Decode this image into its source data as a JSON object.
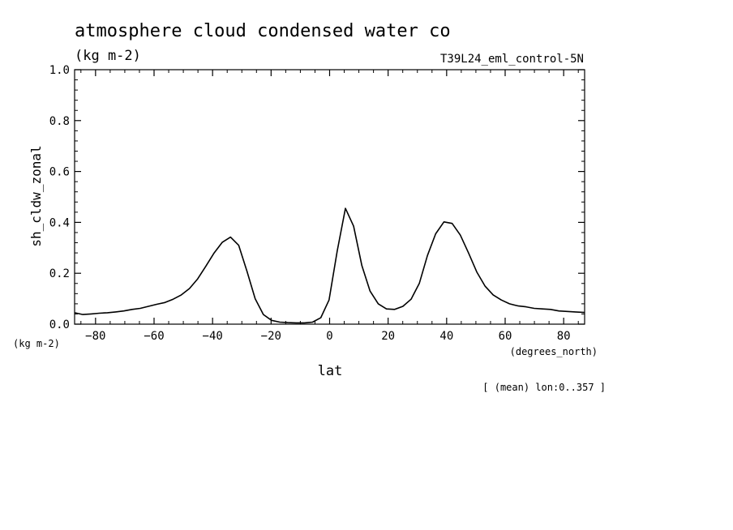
{
  "chart_data": {
    "type": "line",
    "title": "atmosphere cloud condensed water co",
    "subtitle": "(kg m-2)",
    "run_label": "T39L24_eml_control-5N",
    "ylabel": "sh_cldw_zonal",
    "yunits": "(kg m-2)",
    "xlabel": "lat",
    "xunits": "(degrees_north)",
    "footnote": "[ (mean) lon:0..357 ]",
    "xlim": [
      -87.16,
      87.16
    ],
    "ylim": [
      0.0,
      1.0
    ],
    "xticks": [
      "-80",
      "-60",
      "-40",
      "-20",
      "0",
      "20",
      "40",
      "60",
      "80"
    ],
    "yticks": [
      "0.0",
      "0.2",
      "0.4",
      "0.6",
      "0.8",
      "1.0"
    ],
    "colors": {
      "line": "#000000",
      "background": "#ffffff"
    },
    "series": [
      {
        "x": [
          -87.16,
          -84.35,
          -81.55,
          -78.74,
          -75.94,
          -73.13,
          -70.33,
          -67.52,
          -64.72,
          -61.91,
          -59.11,
          -56.3,
          -53.5,
          -50.69,
          -47.89,
          -45.08,
          -42.28,
          -39.47,
          -36.67,
          -33.86,
          -31.06,
          -28.25,
          -25.45,
          -22.64,
          -19.84,
          -17.03,
          -14.23,
          -11.42,
          -8.62,
          -5.81,
          -3.01,
          -0.2,
          2.6,
          5.41,
          8.21,
          11.02,
          13.82,
          16.63,
          19.43,
          22.24,
          25.04,
          27.85,
          30.65,
          33.46,
          36.26,
          39.07,
          41.87,
          44.68,
          47.48,
          50.29,
          53.09,
          55.9,
          58.7,
          61.51,
          64.31,
          67.12,
          69.92,
          72.73,
          75.53,
          78.34,
          81.14,
          83.95,
          87.16
        ],
        "values": [
          0.045,
          0.038,
          0.04,
          0.043,
          0.045,
          0.048,
          0.052,
          0.058,
          0.062,
          0.07,
          0.078,
          0.085,
          0.098,
          0.115,
          0.14,
          0.178,
          0.228,
          0.28,
          0.322,
          0.342,
          0.31,
          0.208,
          0.1,
          0.038,
          0.015,
          0.008,
          0.006,
          0.005,
          0.005,
          0.008,
          0.025,
          0.095,
          0.288,
          0.455,
          0.385,
          0.23,
          0.13,
          0.08,
          0.06,
          0.058,
          0.07,
          0.098,
          0.16,
          0.27,
          0.355,
          0.402,
          0.396,
          0.35,
          0.28,
          0.205,
          0.15,
          0.115,
          0.095,
          0.08,
          0.072,
          0.068,
          0.062,
          0.06,
          0.058,
          0.052,
          0.05,
          0.048,
          0.046
        ]
      }
    ]
  }
}
